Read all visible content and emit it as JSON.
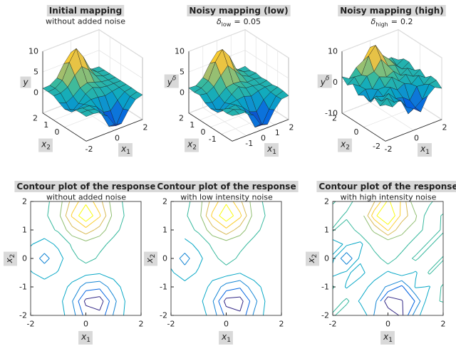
{
  "chart_data": [
    {
      "type": "surface",
      "title": "Initial mapping",
      "subtitle": "without added noise",
      "x1": [
        -2,
        -1.5,
        -1,
        -0.5,
        0,
        0.5,
        1,
        1.5,
        2
      ],
      "x2": [
        -2,
        -1.5,
        -1,
        -0.5,
        0,
        0.5,
        1,
        1.5,
        2
      ],
      "z": [
        [
          1.0,
          1.0,
          0.7,
          -0.8,
          -3.6,
          -4.0,
          -1.4,
          0.5,
          1.0
        ],
        [
          1.0,
          1.0,
          0.6,
          -1.4,
          -4.9,
          -5.4,
          -2.0,
          0.4,
          0.9
        ],
        [
          0.9,
          0.7,
          0.6,
          -0.3,
          -2.3,
          -2.6,
          -0.7,
          0.7,
          1.0
        ],
        [
          0.1,
          -0.6,
          0.1,
          0.6,
          0.5,
          0.2,
          0.6,
          0.9,
          1.0
        ],
        [
          -0.6,
          -2.0,
          -0.6,
          1.1,
          2.0,
          1.3,
          1.0,
          1.0,
          1.0
        ],
        [
          0.1,
          -0.6,
          0.3,
          1.7,
          2.3,
          1.8,
          1.2,
          1.0,
          1.0
        ],
        [
          0.9,
          0.9,
          1.7,
          3.9,
          5.4,
          3.9,
          1.8,
          1.1,
          1.0
        ],
        [
          1.0,
          1.2,
          2.5,
          6.2,
          8.9,
          6.2,
          2.5,
          1.2,
          1.0
        ],
        [
          1.0,
          1.1,
          2.2,
          5.0,
          7.1,
          5.0,
          2.2,
          1.1,
          1.0
        ]
      ],
      "x1lim": [
        -2,
        2
      ],
      "x2lim": [
        -2,
        2
      ],
      "zlim": [
        -5,
        10
      ],
      "x1ticks": [
        -2,
        0,
        2
      ],
      "x2ticks": [
        0,
        1,
        2
      ],
      "zticks": [
        0,
        5,
        10
      ],
      "x1label": {
        "base": "x",
        "sub": "1"
      },
      "x2label": {
        "base": "x",
        "sub": "2"
      },
      "zlabel": {
        "base": "y"
      },
      "contour": {
        "type": "contour",
        "title": "Contour plot of the response",
        "subtitle": "without added noise",
        "xlim": [
          -2,
          2
        ],
        "ylim": [
          -2,
          2
        ],
        "xticks": [
          -2,
          0,
          2
        ],
        "yticks": [
          -2,
          -1,
          0,
          1,
          2
        ],
        "levels": [
          -4.5,
          -3,
          -1.5,
          0,
          1.5,
          3,
          4.5,
          6,
          7.5
        ],
        "xlabel": {
          "base": "x",
          "sub": "1"
        },
        "ylabel": {
          "base": "x",
          "sub": "2"
        }
      }
    },
    {
      "type": "surface",
      "title": "Noisy mapping (low)",
      "subtitle": {
        "symbol": "δ",
        "sub": "low",
        "sign": "=",
        "value": 0.05
      },
      "x1": [
        -2,
        -1.5,
        -1,
        -0.5,
        0,
        0.5,
        1,
        1.5,
        2
      ],
      "x2": [
        -2,
        -1.5,
        -1,
        -0.5,
        0,
        0.5,
        1,
        1.5,
        2
      ],
      "z": [
        [
          1.2,
          0.9,
          0.8,
          -0.6,
          -3.5,
          -4.2,
          -1.3,
          0.6,
          0.8
        ],
        [
          0.9,
          1.2,
          0.5,
          -1.3,
          -5.1,
          -5.2,
          -2.1,
          0.5,
          1.1
        ],
        [
          1.0,
          0.6,
          0.8,
          -0.4,
          -2.2,
          -2.8,
          -0.6,
          0.6,
          1.2
        ],
        [
          0.2,
          -0.8,
          0.2,
          0.5,
          0.7,
          0.1,
          0.7,
          1.0,
          0.9
        ],
        [
          -0.5,
          -2.1,
          -0.4,
          1.0,
          2.2,
          1.2,
          1.1,
          0.8,
          1.1
        ],
        [
          0.0,
          -0.5,
          0.4,
          1.8,
          2.1,
          1.9,
          1.1,
          1.2,
          0.9
        ],
        [
          1.1,
          0.8,
          1.8,
          3.8,
          5.6,
          3.7,
          1.9,
          1.0,
          1.2
        ],
        [
          0.9,
          1.3,
          2.4,
          6.3,
          8.7,
          6.4,
          2.4,
          1.3,
          0.9
        ],
        [
          1.1,
          1.0,
          2.3,
          5.1,
          7.2,
          4.8,
          2.3,
          1.0,
          1.1
        ]
      ],
      "x1lim": [
        -2,
        2
      ],
      "x2lim": [
        -2,
        2
      ],
      "zlim": [
        -5,
        10
      ],
      "x1ticks": [
        -1,
        0,
        1,
        2
      ],
      "x2ticks": [
        -1,
        0,
        1,
        2
      ],
      "zticks": [
        0,
        5,
        10
      ],
      "x1label": {
        "base": "x",
        "sub": "1"
      },
      "x2label": {
        "base": "x",
        "sub": "2"
      },
      "zlabel": {
        "base": "y",
        "sup": "δ"
      },
      "contour": {
        "type": "contour",
        "title": "Contour plot of the response",
        "subtitle": "with low intensity noise",
        "xlim": [
          -2,
          2
        ],
        "ylim": [
          -2,
          2
        ],
        "xticks": [
          -2,
          0,
          2
        ],
        "yticks": [
          -2,
          -1,
          0,
          1,
          2
        ],
        "levels": [
          -4.5,
          -3,
          -1.5,
          0,
          1.5,
          3,
          4.5,
          6,
          7.5
        ],
        "xlabel": {
          "base": "x",
          "sub": "1"
        },
        "ylabel": {
          "base": "x",
          "sub": "2"
        }
      }
    },
    {
      "type": "surface",
      "title": "Noisy mapping (high)",
      "subtitle": {
        "symbol": "δ",
        "sub": "high",
        "sign": "=",
        "value": 0.2
      },
      "x1": [
        -2,
        -1.5,
        -1,
        -0.5,
        0,
        0.5,
        1,
        1.5,
        2
      ],
      "x2": [
        -2,
        -1.5,
        -1,
        -0.5,
        0,
        0.5,
        1,
        1.5,
        2
      ],
      "z": [
        [
          1.8,
          0.2,
          1.5,
          -1.6,
          -3.0,
          -4.9,
          -0.6,
          1.3,
          0.1
        ],
        [
          0.3,
          1.9,
          -0.3,
          -0.7,
          -5.8,
          -4.6,
          -2.9,
          1.2,
          1.6
        ],
        [
          1.7,
          -0.2,
          1.4,
          -1.1,
          -1.6,
          -3.4,
          0.2,
          -0.1,
          1.8
        ],
        [
          -0.6,
          0.3,
          -0.7,
          1.4,
          -0.3,
          0.9,
          -0.2,
          1.7,
          0.2
        ],
        [
          0.3,
          -2.8,
          0.4,
          0.4,
          2.7,
          0.6,
          1.8,
          0.3,
          1.7
        ],
        [
          -0.8,
          0.3,
          -0.5,
          2.5,
          1.6,
          2.6,
          0.4,
          1.8,
          0.3
        ],
        [
          1.7,
          0.1,
          2.5,
          3.1,
          6.2,
          3.2,
          2.6,
          0.4,
          1.8
        ],
        [
          0.2,
          2.0,
          1.7,
          7.0,
          9.6,
          5.5,
          3.2,
          0.5,
          1.7
        ],
        [
          1.8,
          0.3,
          3.0,
          4.3,
          7.8,
          5.8,
          1.5,
          1.9,
          0.2
        ]
      ],
      "x1lim": [
        -2,
        2
      ],
      "x2lim": [
        -2,
        2
      ],
      "zlim": [
        -10,
        10
      ],
      "x1ticks": [
        -2,
        0,
        2
      ],
      "x2ticks": [
        -2,
        0,
        2
      ],
      "zticks": [
        -10,
        0,
        10
      ],
      "x1label": {
        "base": "x",
        "sub": "1"
      },
      "x2label": {
        "base": "x",
        "sub": "2"
      },
      "zlabel": {
        "base": "y",
        "sup": "δ"
      },
      "contour": {
        "type": "contour",
        "title": "Contour plot of the response",
        "subtitle": "with high intensity noise",
        "xlim": [
          -2,
          2
        ],
        "ylim": [
          -2,
          2
        ],
        "xticks": [
          -2,
          0,
          2
        ],
        "yticks": [
          -2,
          -1,
          0,
          1,
          2
        ],
        "levels": [
          -4.5,
          -3,
          -1.5,
          0,
          1.5,
          3,
          4.5,
          6,
          7.5
        ],
        "xlabel": {
          "base": "x",
          "sub": "1"
        },
        "ylabel": {
          "base": "x",
          "sub": "2"
        }
      }
    }
  ]
}
